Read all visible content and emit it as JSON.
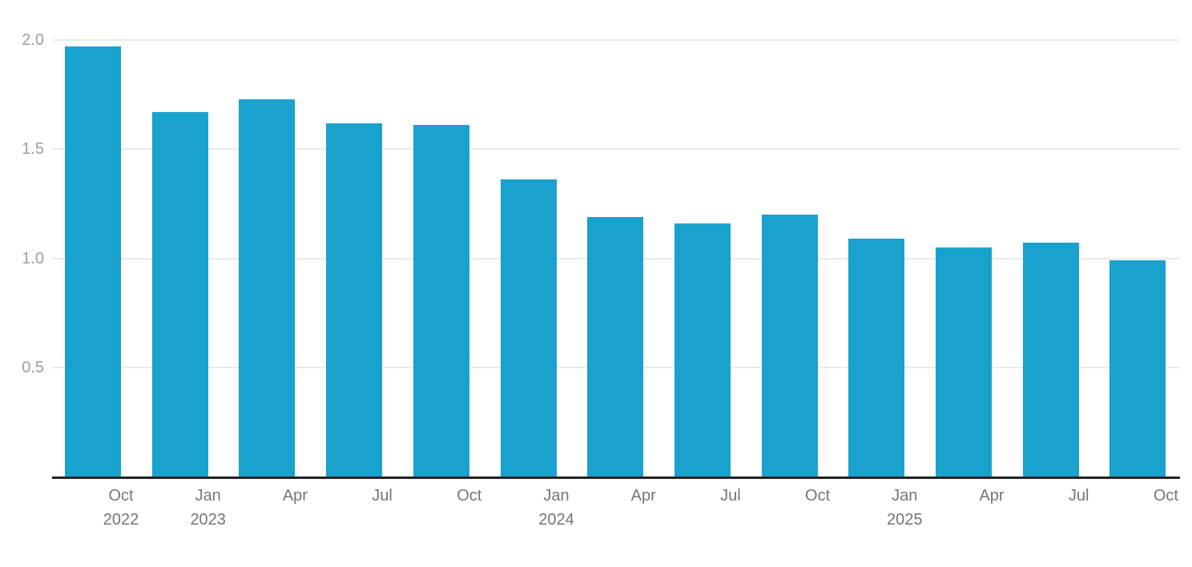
{
  "chart_data": {
    "type": "bar",
    "categories": [
      {
        "label": "Oct",
        "year": "2022"
      },
      {
        "label": "Jan",
        "year": "2023"
      },
      {
        "label": "Apr"
      },
      {
        "label": "Jul"
      },
      {
        "label": "Oct"
      },
      {
        "label": "Jan",
        "year": "2024"
      },
      {
        "label": "Apr"
      },
      {
        "label": "Jul"
      },
      {
        "label": "Oct"
      },
      {
        "label": "Jan",
        "year": "2025"
      },
      {
        "label": "Apr"
      },
      {
        "label": "Jul"
      },
      {
        "label": "Oct"
      }
    ],
    "values": [
      1.97,
      1.67,
      1.73,
      1.62,
      1.61,
      1.36,
      1.19,
      1.16,
      1.2,
      1.09,
      1.05,
      1.07,
      0.99
    ],
    "y_ticks": [
      {
        "value": 2.0,
        "label": "2.0"
      },
      {
        "value": 1.5,
        "label": "1.5"
      },
      {
        "value": 1.0,
        "label": "1.0"
      },
      {
        "value": 0.5,
        "label": "0.5"
      }
    ],
    "ylim": [
      0,
      2.1
    ],
    "grid": true,
    "legend": "none",
    "colors": {
      "bar": "#19A2CD",
      "gridline": "#EAEAEA",
      "axis_line": "#222222",
      "y_label": "#9E9E9E",
      "x_label": "#757575",
      "background": "#FFFFFF"
    }
  }
}
